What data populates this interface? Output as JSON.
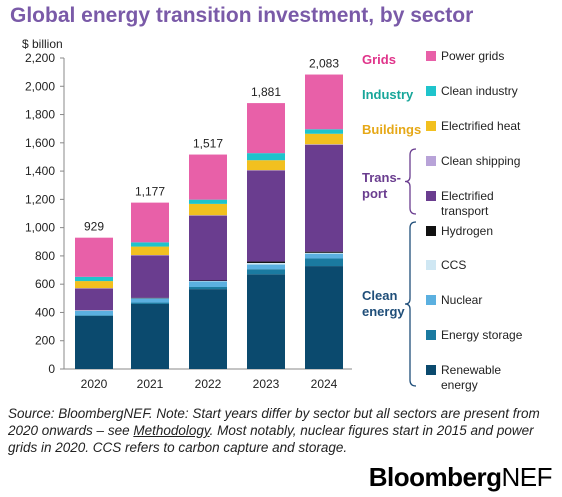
{
  "chart_data": {
    "type": "bar",
    "stacked": true,
    "title": "Global energy transition investment, by sector",
    "ylabel": "$ billion",
    "ylim": [
      0,
      2200
    ],
    "yticks": [
      0,
      200,
      400,
      600,
      800,
      1000,
      1200,
      1400,
      1600,
      1800,
      2000,
      2200
    ],
    "ytick_labels": [
      "0",
      "200",
      "400",
      "600",
      "800",
      "1,000",
      "1,200",
      "1,400",
      "1,600",
      "1,800",
      "2,000",
      "2,200"
    ],
    "grid": false,
    "legend_placement": "right",
    "categories": [
      "2020",
      "2021",
      "2022",
      "2023",
      "2024"
    ],
    "totals": [
      929,
      1177,
      1517,
      1881,
      2083
    ],
    "total_labels": [
      "929",
      "1,177",
      "1,517",
      "1,881",
      "2,083"
    ],
    "series": [
      {
        "name": "Renewable energy",
        "color": "#0b4a6e",
        "values": [
          375,
          460,
          565,
          670,
          728
        ]
      },
      {
        "name": "Energy storage",
        "color": "#1a7aa0",
        "values": [
          5,
          10,
          15,
          36,
          54
        ]
      },
      {
        "name": "Nuclear",
        "color": "#5bb0e0",
        "values": [
          32,
          30,
          40,
          33,
          34
        ]
      },
      {
        "name": "CCS",
        "color": "#cfe7f3",
        "values": [
          3,
          3,
          5,
          11,
          6
        ]
      },
      {
        "name": "Hydrogen",
        "color": "#111111",
        "values": [
          0,
          1,
          1,
          10,
          8
        ]
      },
      {
        "name": "Electrified transport",
        "color": "#6a3d8f",
        "values": [
          155,
          300,
          460,
          645,
          757
        ]
      },
      {
        "name": "Clean shipping",
        "color": "#b8a3d8",
        "values": [
          2,
          2,
          2,
          2,
          3
        ]
      },
      {
        "name": "Electrified heat",
        "color": "#f2c01f",
        "values": [
          50,
          60,
          80,
          70,
          74
        ]
      },
      {
        "name": "Clean industry",
        "color": "#1fc4cc",
        "values": [
          30,
          30,
          30,
          50,
          32
        ]
      },
      {
        "name": "Power grids",
        "color": "#e860a8",
        "values": [
          277,
          281,
          319,
          354,
          387
        ]
      }
    ],
    "groups": [
      {
        "name": "Grids",
        "color": "#e0338a",
        "members": [
          "Power grids"
        ]
      },
      {
        "name": "Industry",
        "color": "#17a69a",
        "members": [
          "Clean industry"
        ]
      },
      {
        "name": "Buildings",
        "color": "#e6a817",
        "members": [
          "Electrified heat"
        ]
      },
      {
        "name": "Trans-\nport",
        "color": "#6a3d8f",
        "members": [
          "Clean shipping",
          "Electrified transport"
        ]
      },
      {
        "name": "Clean\nenergy",
        "color": "#1f4e79",
        "members": [
          "Hydrogen",
          "CCS",
          "Nuclear",
          "Energy storage",
          "Renewable energy"
        ]
      }
    ],
    "legend_labels": [
      {
        "series": "Power grids",
        "text": "Power grids"
      },
      {
        "series": "Clean industry",
        "text": "Clean industry"
      },
      {
        "series": "Electrified heat",
        "text": "Electrified heat"
      },
      {
        "series": "Clean shipping",
        "text": "Clean shipping"
      },
      {
        "series": "Electrified transport",
        "text": "Electrified\ntransport"
      },
      {
        "series": "Hydrogen",
        "text": "Hydrogen"
      },
      {
        "series": "CCS",
        "text": "CCS"
      },
      {
        "series": "Nuclear",
        "text": "Nuclear"
      },
      {
        "series": "Energy storage",
        "text": "Energy storage"
      },
      {
        "series": "Renewable energy",
        "text": "Renewable\nenergy"
      }
    ]
  },
  "note": {
    "prefix": "Source: BloombergNEF. Note: Start years differ by sector but all sectors are present from 2020 onwards – see ",
    "link": "Methodology",
    "suffix": ". Most notably, nuclear figures start in 2015 and power grids in 2020. CCS refers to carbon capture and storage."
  },
  "brand": {
    "bold": "Bloomberg",
    "light": "NEF"
  }
}
